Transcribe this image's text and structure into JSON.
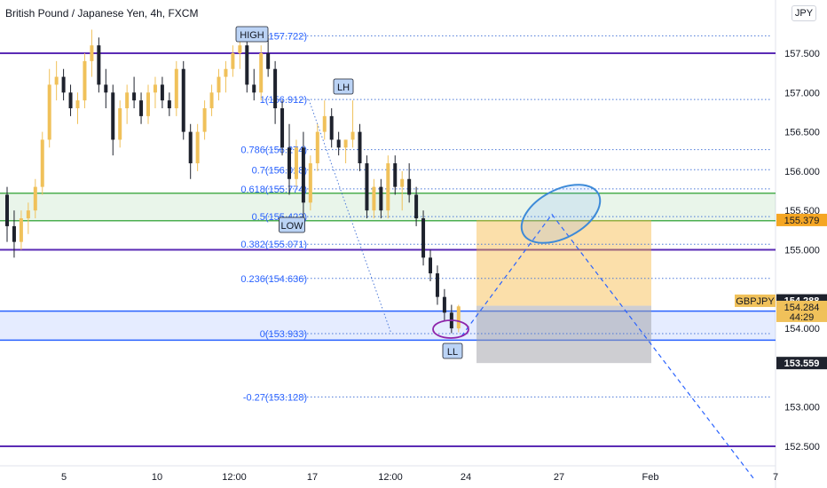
{
  "header": {
    "title": "British Pound / Japanese Yen, 4h, FXCM",
    "currency_button": "JPY"
  },
  "chart_data": {
    "type": "candlestick",
    "symbol": "GBPJPY",
    "yrange": [
      152.2,
      158.0
    ],
    "price_ticks": [
      {
        "v": 157.5,
        "t": "157.500"
      },
      {
        "v": 157.0,
        "t": "157.000"
      },
      {
        "v": 156.5,
        "t": "156.500"
      },
      {
        "v": 156.0,
        "t": "156.000"
      },
      {
        "v": 155.5,
        "t": "155.500"
      },
      {
        "v": 155.0,
        "t": "155.000"
      },
      {
        "v": 154.0,
        "t": "154.000"
      },
      {
        "v": 153.0,
        "t": "153.000"
      },
      {
        "v": 152.5,
        "t": "152.500"
      }
    ],
    "time_ticks": [
      "5",
      "10",
      "12:00",
      "17",
      "12:00",
      "24",
      "27",
      "Feb",
      "7"
    ],
    "fib_levels": [
      {
        "label": "1(157.722)",
        "v": 157.722
      },
      {
        "label": "1(156.912)",
        "v": 156.912
      },
      {
        "label": "0.786(156.274)",
        "v": 156.274
      },
      {
        "label": "0.7(156.018)",
        "v": 156.018
      },
      {
        "label": "0.618(155.774)",
        "v": 155.774
      },
      {
        "label": "0.5(155.422)",
        "v": 155.422
      },
      {
        "label": "0.382(155.071)",
        "v": 155.071
      },
      {
        "label": "0.236(154.636)",
        "v": 154.636
      },
      {
        "label": "0(153.933)",
        "v": 153.933
      },
      {
        "label": "-0.27(153.128)",
        "v": 153.128
      }
    ],
    "horizontal_lines": [
      {
        "v": 157.5,
        "color": "#5b2bb5"
      },
      {
        "v": 155.0,
        "color": "#5b2bb5"
      },
      {
        "v": 152.5,
        "color": "#5b2bb5"
      }
    ],
    "zones": [
      {
        "name": "green-zone",
        "top": 155.72,
        "bottom": 155.37,
        "color": "#4caf50"
      },
      {
        "name": "blue-zone",
        "top": 154.22,
        "bottom": 153.85,
        "color": "#2962ff"
      }
    ],
    "annotations": [
      {
        "text": "HIGH"
      },
      {
        "text": "LH"
      },
      {
        "text": "LOW"
      },
      {
        "text": "LL"
      }
    ],
    "position": {
      "entry": 154.288,
      "target": 155.379,
      "stop": 153.559
    },
    "price_labels": [
      {
        "text": "155.379",
        "v": 155.379,
        "style": "orange"
      },
      {
        "text": "154.288",
        "v": 154.288,
        "style": "dark"
      },
      {
        "text": "GBPJPY",
        "v": 154.284,
        "style": "symbol"
      },
      {
        "text": "154.284",
        "v": 154.284,
        "style": "current"
      },
      {
        "text": "44:29",
        "v": 154.284,
        "style": "timer"
      },
      {
        "text": "153.559",
        "v": 153.559,
        "style": "dark"
      }
    ],
    "candles": [
      [
        155.7,
        155.8,
        155.1,
        155.3
      ],
      [
        155.3,
        155.5,
        154.9,
        155.1
      ],
      [
        155.1,
        155.5,
        155.0,
        155.4
      ],
      [
        155.4,
        155.6,
        155.2,
        155.5
      ],
      [
        155.5,
        155.9,
        155.4,
        155.8
      ],
      [
        155.8,
        156.5,
        155.7,
        156.4
      ],
      [
        156.4,
        157.3,
        156.3,
        157.1
      ],
      [
        157.1,
        157.4,
        156.9,
        157.2
      ],
      [
        157.2,
        157.3,
        156.9,
        157.0
      ],
      [
        157.0,
        157.1,
        156.7,
        156.8
      ],
      [
        156.8,
        157.0,
        156.6,
        156.9
      ],
      [
        156.9,
        157.5,
        156.8,
        157.4
      ],
      [
        157.4,
        157.8,
        157.2,
        157.6
      ],
      [
        157.6,
        157.7,
        157.0,
        157.1
      ],
      [
        157.1,
        157.3,
        156.8,
        157.0
      ],
      [
        157.0,
        157.1,
        156.2,
        156.4
      ],
      [
        156.4,
        156.9,
        156.3,
        156.8
      ],
      [
        156.8,
        157.1,
        156.6,
        157.0
      ],
      [
        157.0,
        157.2,
        156.8,
        156.9
      ],
      [
        156.9,
        157.0,
        156.6,
        156.7
      ],
      [
        156.7,
        157.1,
        156.6,
        157.0
      ],
      [
        157.0,
        157.2,
        156.8,
        157.1
      ],
      [
        157.1,
        157.2,
        156.8,
        156.9
      ],
      [
        156.9,
        157.0,
        156.7,
        156.8
      ],
      [
        156.8,
        157.4,
        156.7,
        157.3
      ],
      [
        157.3,
        157.4,
        156.4,
        156.5
      ],
      [
        156.5,
        156.6,
        155.9,
        156.1
      ],
      [
        156.1,
        156.6,
        156.0,
        156.5
      ],
      [
        156.5,
        156.9,
        156.4,
        156.8
      ],
      [
        156.8,
        157.1,
        156.7,
        157.0
      ],
      [
        157.0,
        157.3,
        156.9,
        157.2
      ],
      [
        157.2,
        157.4,
        157.0,
        157.3
      ],
      [
        157.3,
        157.6,
        157.2,
        157.5
      ],
      [
        157.5,
        157.7,
        157.3,
        157.6
      ],
      [
        157.6,
        157.7,
        157.0,
        157.1
      ],
      [
        157.1,
        157.3,
        156.9,
        157.0
      ],
      [
        157.0,
        157.6,
        156.9,
        157.5
      ],
      [
        157.5,
        157.7,
        157.2,
        157.3
      ],
      [
        157.3,
        157.4,
        156.6,
        156.8
      ],
      [
        156.8,
        156.9,
        156.2,
        156.3
      ],
      [
        156.3,
        156.6,
        155.7,
        155.9
      ],
      [
        155.9,
        156.4,
        155.8,
        156.3
      ],
      [
        156.3,
        156.5,
        155.4,
        155.6
      ],
      [
        155.6,
        156.2,
        155.5,
        156.1
      ],
      [
        156.1,
        156.6,
        156.0,
        156.5
      ],
      [
        156.5,
        156.9,
        156.4,
        156.7
      ],
      [
        156.7,
        156.8,
        156.3,
        156.4
      ],
      [
        156.4,
        156.5,
        156.2,
        156.3
      ],
      [
        156.3,
        156.4,
        156.1,
        156.4
      ],
      [
        156.4,
        156.9,
        156.3,
        156.5
      ],
      [
        156.5,
        156.6,
        156.0,
        156.1
      ],
      [
        156.1,
        156.2,
        155.4,
        155.5
      ],
      [
        155.5,
        155.9,
        155.4,
        155.8
      ],
      [
        155.8,
        155.9,
        155.4,
        155.5
      ],
      [
        155.5,
        156.2,
        155.4,
        156.1
      ],
      [
        156.1,
        156.2,
        155.7,
        155.8
      ],
      [
        155.8,
        156.0,
        155.5,
        155.9
      ],
      [
        155.9,
        156.1,
        155.6,
        155.7
      ],
      [
        155.7,
        155.8,
        155.3,
        155.4
      ],
      [
        155.4,
        155.5,
        154.8,
        154.9
      ],
      [
        154.9,
        155.0,
        154.6,
        154.7
      ],
      [
        154.7,
        154.8,
        154.3,
        154.4
      ],
      [
        154.4,
        154.5,
        154.1,
        154.2
      ],
      [
        154.2,
        154.3,
        153.94,
        154.0
      ],
      [
        154.0,
        154.3,
        153.95,
        154.28
      ]
    ]
  }
}
